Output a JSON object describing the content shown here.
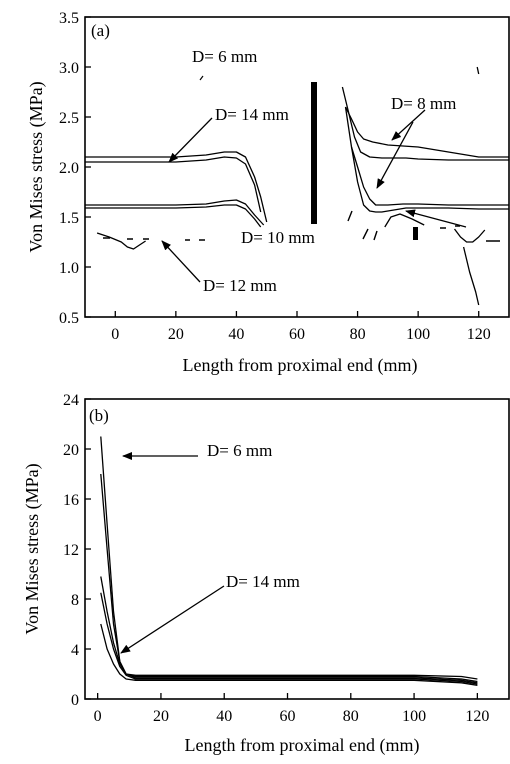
{
  "chart_data": [
    {
      "type": "line",
      "panel_label": "(a)",
      "xlabel": "Length from proximal end (mm)",
      "ylabel": "Von Mises stress (MPa)",
      "xlim": [
        -10,
        130
      ],
      "ylim": [
        0.5,
        3.5
      ],
      "xticks": [
        0,
        20,
        40,
        60,
        80,
        100,
        120
      ],
      "yticks": [
        0.5,
        1.0,
        1.5,
        2.0,
        2.5,
        3.0,
        3.5
      ],
      "ytick_labels": [
        "0.5",
        "1.0",
        "1.5",
        "2.0",
        "2.5",
        "3.0",
        "3.5"
      ],
      "series": [
        {
          "name": "D= 6 mm",
          "x": [
            119.5,
            120
          ],
          "y": [
            3.0,
            2.93
          ]
        },
        {
          "name": "D= 14 mm",
          "x": [
            -10,
            0,
            10,
            20,
            30,
            36,
            40,
            43,
            46,
            48,
            50
          ],
          "y": [
            2.1,
            2.1,
            2.1,
            2.1,
            2.12,
            2.15,
            2.15,
            2.1,
            1.9,
            1.7,
            1.45
          ]
        },
        {
          "name": "D= 14 mm",
          "x": [
            -10,
            0,
            10,
            20,
            30,
            36,
            40,
            43,
            46,
            48
          ],
          "y": [
            2.05,
            2.05,
            2.05,
            2.05,
            2.07,
            2.1,
            2.09,
            2.03,
            1.82,
            1.55
          ]
        },
        {
          "name": "D= 10 mm",
          "x": [
            -10,
            0,
            10,
            20,
            30,
            36,
            40,
            43,
            46,
            49
          ],
          "y": [
            1.62,
            1.62,
            1.62,
            1.62,
            1.63,
            1.66,
            1.67,
            1.63,
            1.52,
            1.42
          ]
        },
        {
          "name": "D= 10 mm",
          "x": [
            -10,
            0,
            10,
            20,
            30,
            36,
            40,
            43,
            46,
            48
          ],
          "y": [
            1.59,
            1.59,
            1.59,
            1.59,
            1.6,
            1.62,
            1.62,
            1.58,
            1.48,
            1.4
          ]
        },
        {
          "name": "D= 8 mm",
          "x": [
            76,
            78,
            80,
            82,
            85,
            90,
            95,
            100,
            110,
            120,
            130
          ],
          "y": [
            2.6,
            2.48,
            2.35,
            2.28,
            2.25,
            2.22,
            2.21,
            2.2,
            2.15,
            2.1,
            2.1
          ]
        },
        {
          "name": "D= 8 mm",
          "x": [
            75,
            77,
            79,
            81,
            84,
            88,
            92,
            96,
            100,
            110,
            120,
            130
          ],
          "y": [
            2.8,
            2.55,
            2.3,
            2.15,
            2.1,
            2.09,
            2.09,
            2.09,
            2.08,
            2.07,
            2.07,
            2.07
          ]
        },
        {
          "name": "D= 10 mm",
          "x": [
            78,
            80,
            82,
            84,
            86,
            90,
            95,
            100,
            110,
            120,
            130
          ],
          "y": [
            2.2,
            2.0,
            1.8,
            1.68,
            1.62,
            1.62,
            1.63,
            1.63,
            1.62,
            1.62,
            1.62
          ]
        },
        {
          "name": "D= 10 mm",
          "x": [
            76,
            78,
            80,
            82,
            84,
            86,
            88,
            92,
            96,
            100,
            110,
            120,
            130
          ],
          "y": [
            2.6,
            2.2,
            1.85,
            1.62,
            1.56,
            1.55,
            1.55,
            1.57,
            1.59,
            1.59,
            1.59,
            1.58,
            1.58
          ]
        },
        {
          "name": "D= 12 mm",
          "x": [
            89,
            91,
            94,
            98,
            102
          ],
          "y": [
            1.4,
            1.5,
            1.53,
            1.48,
            1.42
          ]
        },
        {
          "name": "D= 12 mm",
          "x": [
            -6,
            -2,
            2,
            4,
            6,
            8,
            10
          ],
          "y": [
            1.34,
            1.3,
            1.25,
            1.2,
            1.18,
            1.22,
            1.26
          ]
        },
        {
          "name": "D= 12 mm",
          "x": [
            112,
            114,
            116,
            118,
            120,
            122
          ],
          "y": [
            1.38,
            1.3,
            1.25,
            1.25,
            1.3,
            1.37
          ]
        },
        {
          "name": "D= 6 mm",
          "x": [
            115,
            117,
            119,
            120
          ],
          "y": [
            1.2,
            0.95,
            0.75,
            0.62
          ]
        }
      ],
      "annotations": [
        {
          "text": "D= 6 mm"
        },
        {
          "text": "D= 14 mm"
        },
        {
          "text": "D= 8 mm"
        },
        {
          "text": "D= 10 mm"
        },
        {
          "text": "D= 12 mm"
        }
      ]
    },
    {
      "type": "line",
      "panel_label": "(b)",
      "xlabel": "Length from proximal end (mm)",
      "ylabel": "Von Mises stress (MPa)",
      "xlim": [
        -4,
        130
      ],
      "ylim": [
        0,
        24
      ],
      "xticks": [
        0,
        20,
        40,
        60,
        80,
        100,
        120
      ],
      "yticks": [
        0,
        4,
        8,
        12,
        16,
        20,
        24
      ],
      "series": [
        {
          "name": "D= 6 mm",
          "x": [
            1,
            3,
            5,
            7,
            9,
            12,
            20,
            40,
            60,
            80,
            100,
            115,
            120
          ],
          "y": [
            21.0,
            14.0,
            7.0,
            3.0,
            2.0,
            1.9,
            1.9,
            1.9,
            1.9,
            1.9,
            1.9,
            1.8,
            1.6
          ]
        },
        {
          "name": "",
          "x": [
            1,
            3,
            5,
            7,
            9,
            12,
            20,
            40,
            60,
            80,
            100,
            115,
            120
          ],
          "y": [
            18.0,
            12.0,
            6.0,
            3.0,
            2.0,
            1.8,
            1.8,
            1.8,
            1.8,
            1.8,
            1.8,
            1.6,
            1.4
          ]
        },
        {
          "name": "D= 14 mm",
          "x": [
            1,
            3,
            5,
            7,
            9,
            12,
            20,
            40,
            60,
            80,
            100,
            115,
            120
          ],
          "y": [
            9.8,
            7.0,
            4.5,
            2.8,
            2.0,
            1.7,
            1.7,
            1.7,
            1.7,
            1.7,
            1.7,
            1.5,
            1.3
          ]
        },
        {
          "name": "",
          "x": [
            1,
            3,
            5,
            7,
            9,
            12,
            20,
            40,
            60,
            80,
            100,
            115,
            120
          ],
          "y": [
            8.5,
            6.0,
            4.0,
            2.6,
            1.9,
            1.6,
            1.6,
            1.6,
            1.6,
            1.6,
            1.6,
            1.4,
            1.2
          ]
        },
        {
          "name": "",
          "x": [
            1,
            3,
            5,
            7,
            9,
            12,
            20,
            40,
            60,
            80,
            100,
            115,
            120
          ],
          "y": [
            6.0,
            4.0,
            2.8,
            2.0,
            1.6,
            1.5,
            1.5,
            1.5,
            1.5,
            1.5,
            1.5,
            1.3,
            1.1
          ]
        }
      ],
      "annotations": [
        {
          "text": "D= 6 mm"
        },
        {
          "text": "D= 14 mm"
        }
      ]
    }
  ]
}
